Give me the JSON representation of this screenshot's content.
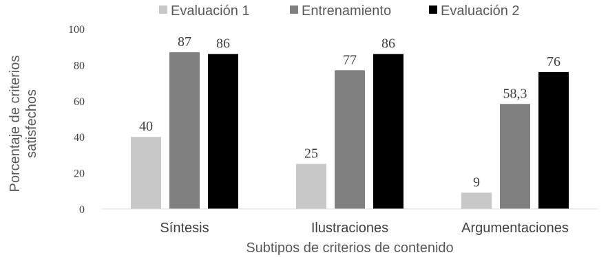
{
  "chart_data": {
    "type": "bar",
    "categories": [
      "Síntesis",
      "Ilustraciones",
      "Argumentaciones"
    ],
    "series": [
      {
        "name": "Evaluación 1",
        "color": "#c8c8c8",
        "values": [
          40,
          25,
          9
        ],
        "labels": [
          "40",
          "25",
          "9"
        ]
      },
      {
        "name": "Entrenamiento",
        "color": "#808080",
        "values": [
          87,
          77,
          58.3
        ],
        "labels": [
          "87",
          "77",
          "58,3"
        ]
      },
      {
        "name": "Evaluación 2",
        "color": "#000000",
        "values": [
          86,
          86,
          76
        ],
        "labels": [
          "86",
          "86",
          "76"
        ]
      }
    ],
    "ylabel_line1": "Porcentaje de criterios",
    "ylabel_line2": "satisfechos",
    "xlabel": "Subtipos de criterios de contenido",
    "ylim": [
      0,
      100
    ],
    "yticks": [
      0,
      20,
      40,
      60,
      80,
      100
    ],
    "grid": false,
    "legend_position": "top"
  }
}
